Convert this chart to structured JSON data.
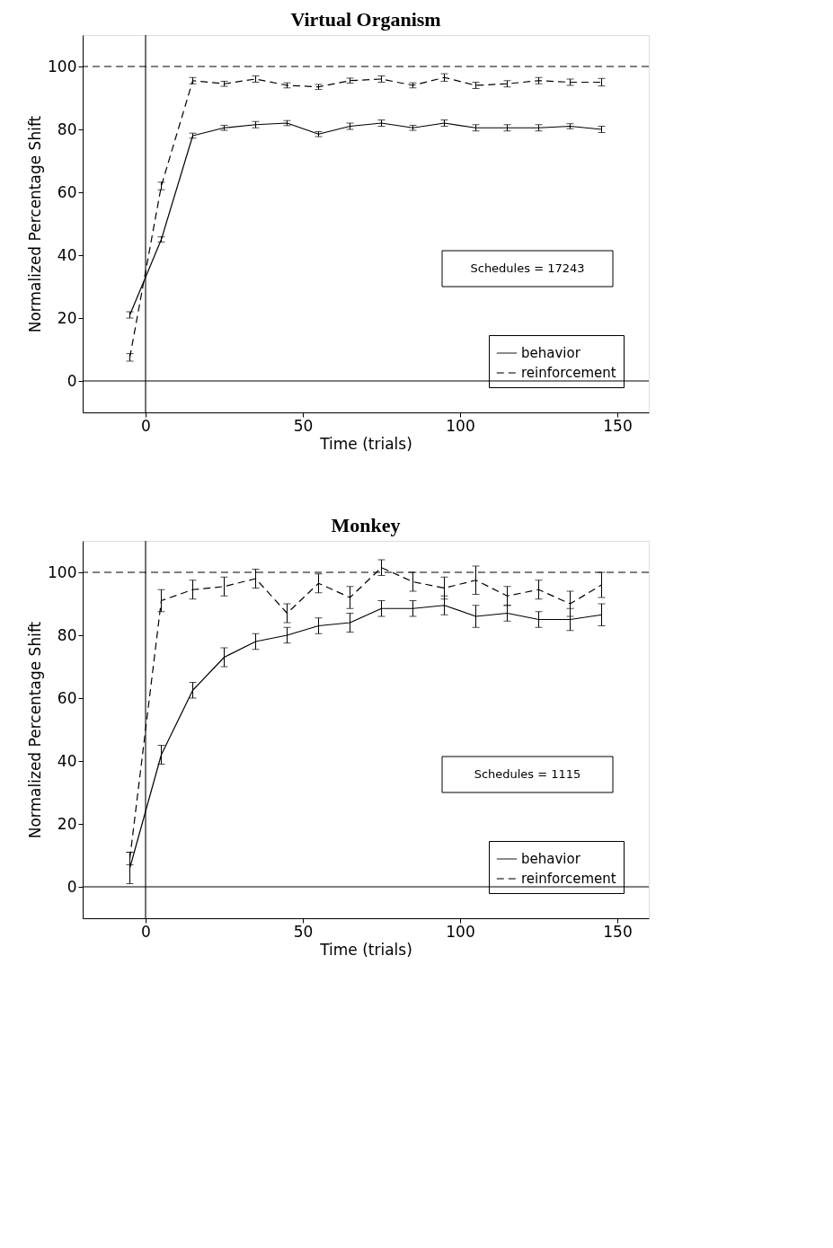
{
  "chart_data": [
    {
      "type": "line",
      "title": "Virtual Organism",
      "xlabel": "Time (trials)",
      "ylabel": "Normalized Percentage Shift",
      "x": [
        -5,
        5,
        15,
        25,
        35,
        45,
        55,
        65,
        75,
        85,
        95,
        105,
        115,
        125,
        135,
        145
      ],
      "xlim": [
        -20,
        160
      ],
      "xticks": [
        0,
        50,
        100,
        150
      ],
      "ylim": [
        -10,
        110
      ],
      "yticks": [
        0,
        20,
        40,
        60,
        80,
        100
      ],
      "grid": false,
      "legend": "bottom right",
      "marker": "none",
      "annotations": [
        "Schedules = 17243"
      ],
      "ref_lines": [
        {
          "axis": "y",
          "value": 0,
          "label": null,
          "color": "#000000",
          "line_style": "solid"
        },
        {
          "axis": "y",
          "value": 100,
          "label": null,
          "color": "#000000",
          "line_style": "dashed"
        },
        {
          "axis": "x",
          "value": 0,
          "label": null,
          "color": "#000000",
          "line_style": "solid"
        }
      ],
      "series": [
        {
          "name": "behavior",
          "color": "#000000",
          "line_style": "solid",
          "values": [
            21,
            45,
            78,
            80.5,
            81.5,
            82,
            78.5,
            81,
            82,
            80.5,
            82,
            80.5,
            80.5,
            80.5,
            81,
            80
          ],
          "errors": [
            1,
            0.8,
            0.8,
            0.8,
            1,
            0.8,
            0.8,
            1,
            1,
            0.8,
            1,
            1,
            1,
            1,
            0.8,
            1
          ]
        },
        {
          "name": "reinforcement",
          "color": "#000000",
          "line_style": "dashed",
          "values": [
            7.5,
            62,
            95.5,
            94.5,
            96,
            94,
            93.5,
            95.5,
            96,
            94,
            96.5,
            94,
            94.5,
            95.5,
            95,
            95
          ],
          "errors": [
            1.2,
            1.2,
            1,
            0.8,
            1,
            0.8,
            0.8,
            0.8,
            1,
            0.8,
            1.2,
            1,
            1,
            1,
            1,
            1.2
          ]
        }
      ]
    },
    {
      "type": "line",
      "title": "Monkey",
      "xlabel": "Time (trials)",
      "ylabel": "Normalized Percentage Shift",
      "x": [
        -5,
        5,
        15,
        25,
        35,
        45,
        55,
        65,
        75,
        85,
        95,
        105,
        115,
        125,
        135,
        145
      ],
      "xlim": [
        -20,
        160
      ],
      "xticks": [
        0,
        50,
        100,
        150
      ],
      "ylim": [
        -10,
        110
      ],
      "yticks": [
        0,
        20,
        40,
        60,
        80,
        100
      ],
      "grid": false,
      "legend": "bottom right",
      "marker": "none",
      "annotations": [
        "Schedules = 1115"
      ],
      "ref_lines": [
        {
          "axis": "y",
          "value": 0,
          "label": null,
          "color": "#000000",
          "line_style": "solid"
        },
        {
          "axis": "y",
          "value": 100,
          "label": null,
          "color": "#000000",
          "line_style": "dashed"
        },
        {
          "axis": "x",
          "value": 0,
          "label": null,
          "color": "#000000",
          "line_style": "solid"
        }
      ],
      "series": [
        {
          "name": "behavior",
          "color": "#000000",
          "line_style": "solid",
          "values": [
            6,
            42,
            62.5,
            73,
            78,
            80,
            83,
            84,
            88.5,
            88.5,
            89.5,
            86,
            87,
            85,
            85,
            86.5
          ],
          "errors": [
            5,
            3,
            2.5,
            3,
            2.5,
            2.5,
            2.5,
            3,
            2.5,
            2.5,
            3,
            3.5,
            2.5,
            2.5,
            3.5,
            3.5
          ]
        },
        {
          "name": "reinforcement",
          "color": "#000000",
          "line_style": "dashed",
          "values": [
            9,
            91,
            94.5,
            95.5,
            98,
            87,
            96.5,
            92,
            101.5,
            97,
            95,
            97.5,
            92.5,
            94.5,
            90,
            96
          ],
          "errors": [
            2,
            3.5,
            3,
            3,
            3,
            3,
            3,
            3.5,
            2.5,
            3,
            3.5,
            4.5,
            3,
            3,
            4,
            4
          ]
        }
      ]
    }
  ]
}
